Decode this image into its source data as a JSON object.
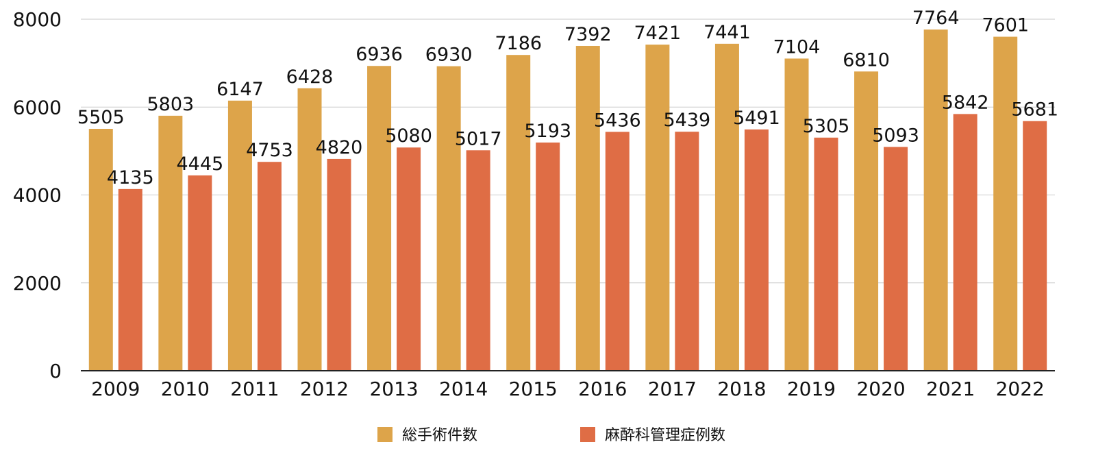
{
  "chart_data": {
    "type": "bar",
    "categories": [
      "2009",
      "2010",
      "2011",
      "2012",
      "2013",
      "2014",
      "2015",
      "2016",
      "2017",
      "2018",
      "2019",
      "2020",
      "2021",
      "2022"
    ],
    "series": [
      {
        "name": "総手術件数",
        "color": "#DDA44A",
        "values": [
          5505,
          5803,
          6147,
          6428,
          6936,
          6930,
          7186,
          7392,
          7421,
          7441,
          7104,
          6810,
          7764,
          7601
        ]
      },
      {
        "name": "麻酔科管理症例数",
        "color": "#DF6D45",
        "values": [
          4135,
          4445,
          4753,
          4820,
          5080,
          5017,
          5193,
          5436,
          5439,
          5491,
          5305,
          5093,
          5842,
          5681
        ]
      }
    ],
    "ylim": [
      0,
      8000
    ],
    "yticks": [
      0,
      2000,
      4000,
      6000,
      8000
    ],
    "grid": true,
    "legend_position": "bottom",
    "data_labels": true
  }
}
